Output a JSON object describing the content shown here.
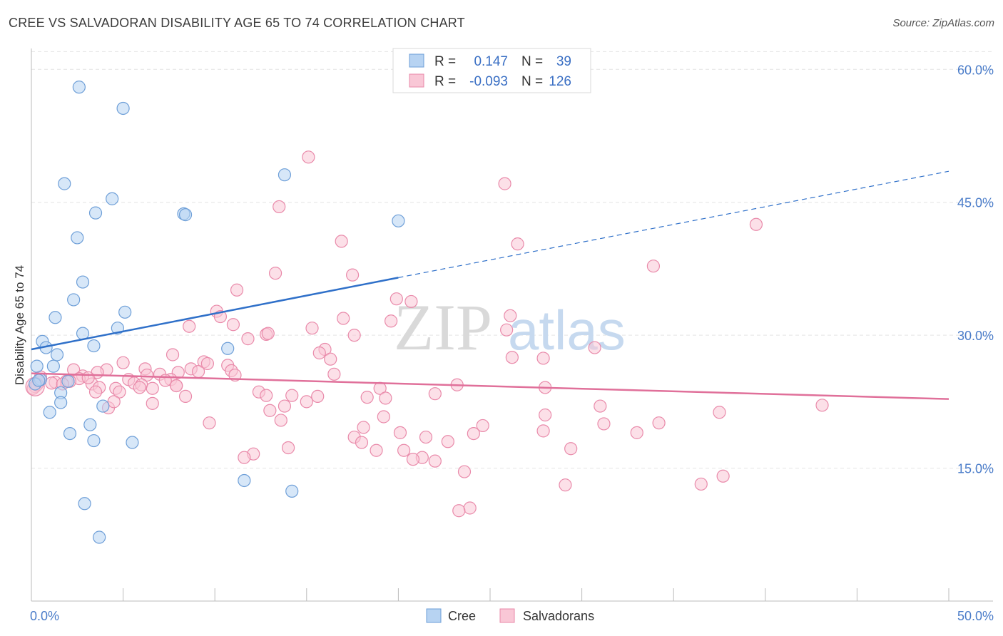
{
  "title": "CREE VS SALVADORAN DISABILITY AGE 65 TO 74 CORRELATION CHART",
  "source": "Source: ZipAtlas.com",
  "colors": {
    "cree_fill": "#b7d3f2",
    "cree_stroke": "#6e9fd8",
    "cree_line": "#2f70c9",
    "salv_fill": "#f9c7d6",
    "salv_stroke": "#e98aaa",
    "salv_line": "#e0709a",
    "grid": "#e4e4e4",
    "tick_text": "#4a7cc9"
  },
  "legend": {
    "r_label": "R =",
    "n_label": "N =",
    "rows": [
      {
        "series": "Cree",
        "r": "0.147",
        "n": "39"
      },
      {
        "series": "Salvadorans",
        "r": "-0.093",
        "n": "126"
      }
    ]
  },
  "bottom_legend": [
    "Cree",
    "Salvadorans"
  ],
  "watermark": {
    "zip": "ZIP",
    "atlas": "atlas"
  },
  "chart_data": {
    "type": "scatter",
    "title": "CREE VS SALVADORAN DISABILITY AGE 65 TO 74 CORRELATION CHART",
    "xlabel": "",
    "ylabel": "Disability Age 65 to 74",
    "xlim": [
      0,
      50
    ],
    "ylim": [
      0,
      63
    ],
    "x_ticks": [
      {
        "value": 0,
        "label": "0.0%"
      },
      {
        "value": 50,
        "label": "50.0%"
      }
    ],
    "y_ticks": [
      {
        "value": 15,
        "label": "15.0%"
      },
      {
        "value": 30,
        "label": "30.0%"
      },
      {
        "value": 45,
        "label": "45.0%"
      },
      {
        "value": 60,
        "label": "60.0%"
      }
    ],
    "grid": true,
    "series": [
      {
        "name": "Cree",
        "trend": {
          "x": [
            0,
            20
          ],
          "y": [
            28.4,
            36.5
          ],
          "dashed_extension_to": [
            50,
            48.5
          ]
        },
        "points": [
          [
            2.6,
            58.0
          ],
          [
            5.0,
            55.6
          ],
          [
            1.8,
            47.1
          ],
          [
            13.8,
            48.1
          ],
          [
            4.4,
            45.4
          ],
          [
            3.5,
            43.8
          ],
          [
            8.3,
            43.7
          ],
          [
            8.4,
            43.6
          ],
          [
            20.0,
            42.9
          ],
          [
            2.5,
            41.0
          ],
          [
            2.8,
            36.0
          ],
          [
            2.3,
            34.0
          ],
          [
            5.1,
            32.6
          ],
          [
            1.3,
            32.0
          ],
          [
            4.7,
            30.8
          ],
          [
            2.8,
            30.2
          ],
          [
            0.6,
            29.3
          ],
          [
            3.4,
            28.8
          ],
          [
            0.8,
            28.6
          ],
          [
            10.7,
            28.5
          ],
          [
            1.4,
            27.8
          ],
          [
            0.3,
            26.5
          ],
          [
            1.2,
            26.5
          ],
          [
            0.5,
            25.0
          ],
          [
            2.0,
            24.8
          ],
          [
            0.2,
            24.5
          ],
          [
            1.6,
            23.5
          ],
          [
            1.6,
            22.4
          ],
          [
            3.9,
            22.0
          ],
          [
            1.0,
            21.3
          ],
          [
            3.2,
            19.9
          ],
          [
            2.1,
            18.9
          ],
          [
            3.4,
            18.1
          ],
          [
            5.5,
            17.9
          ],
          [
            11.6,
            13.6
          ],
          [
            14.2,
            12.4
          ],
          [
            2.9,
            11.0
          ],
          [
            3.7,
            7.2
          ],
          [
            0.4,
            24.9
          ]
        ]
      },
      {
        "name": "Salvadorans",
        "trend": {
          "x": [
            0,
            50
          ],
          "y": [
            25.7,
            22.8
          ]
        },
        "points": [
          [
            15.1,
            50.1
          ],
          [
            25.8,
            47.1
          ],
          [
            13.5,
            44.5
          ],
          [
            39.5,
            42.5
          ],
          [
            16.9,
            40.6
          ],
          [
            26.5,
            40.3
          ],
          [
            33.9,
            37.8
          ],
          [
            13.3,
            37.0
          ],
          [
            17.5,
            36.8
          ],
          [
            11.2,
            35.1
          ],
          [
            19.9,
            34.1
          ],
          [
            20.7,
            33.8
          ],
          [
            10.1,
            32.7
          ],
          [
            10.3,
            32.1
          ],
          [
            26.1,
            32.2
          ],
          [
            17.0,
            31.9
          ],
          [
            19.6,
            31.6
          ],
          [
            8.6,
            31.0
          ],
          [
            11.0,
            31.2
          ],
          [
            15.3,
            30.8
          ],
          [
            25.9,
            30.6
          ],
          [
            12.8,
            30.1
          ],
          [
            12.9,
            30.2
          ],
          [
            17.6,
            30.0
          ],
          [
            11.8,
            29.6
          ],
          [
            30.7,
            28.6
          ],
          [
            7.7,
            27.8
          ],
          [
            16.0,
            28.4
          ],
          [
            15.7,
            28.0
          ],
          [
            26.2,
            27.5
          ],
          [
            27.9,
            27.4
          ],
          [
            9.4,
            27.0
          ],
          [
            9.6,
            26.8
          ],
          [
            16.3,
            27.3
          ],
          [
            5.0,
            26.9
          ],
          [
            10.7,
            26.6
          ],
          [
            4.1,
            26.1
          ],
          [
            2.3,
            26.1
          ],
          [
            6.2,
            26.2
          ],
          [
            8.7,
            26.2
          ],
          [
            3.6,
            25.8
          ],
          [
            8.0,
            25.8
          ],
          [
            9.1,
            25.9
          ],
          [
            10.9,
            26.0
          ],
          [
            7.0,
            25.6
          ],
          [
            2.8,
            25.4
          ],
          [
            6.3,
            25.5
          ],
          [
            11.1,
            25.5
          ],
          [
            16.5,
            25.6
          ],
          [
            2.6,
            25.1
          ],
          [
            5.3,
            25.0
          ],
          [
            7.6,
            25.0
          ],
          [
            7.3,
            24.9
          ],
          [
            1.9,
            24.8
          ],
          [
            2.1,
            24.8
          ],
          [
            1.3,
            24.7
          ],
          [
            1.1,
            24.6
          ],
          [
            1.7,
            24.5
          ],
          [
            0.4,
            24.7
          ],
          [
            3.3,
            24.5
          ],
          [
            5.6,
            24.6
          ],
          [
            6.0,
            24.4
          ],
          [
            7.9,
            24.3
          ],
          [
            23.2,
            24.4
          ],
          [
            0.2,
            24.2
          ],
          [
            3.7,
            24.1
          ],
          [
            4.6,
            24.0
          ],
          [
            5.9,
            24.1
          ],
          [
            6.6,
            24.0
          ],
          [
            7.9,
            24.3
          ],
          [
            19.0,
            24.0
          ],
          [
            28.0,
            24.1
          ],
          [
            3.5,
            23.6
          ],
          [
            4.8,
            23.6
          ],
          [
            12.4,
            23.6
          ],
          [
            22.0,
            23.4
          ],
          [
            12.8,
            23.2
          ],
          [
            14.2,
            23.2
          ],
          [
            15.6,
            23.1
          ],
          [
            18.3,
            23.0
          ],
          [
            19.3,
            22.9
          ],
          [
            8.4,
            23.1
          ],
          [
            6.6,
            22.3
          ],
          [
            15.0,
            22.5
          ],
          [
            13.8,
            22.0
          ],
          [
            31.0,
            22.0
          ],
          [
            43.1,
            22.1
          ],
          [
            4.2,
            21.8
          ],
          [
            13.0,
            21.5
          ],
          [
            37.5,
            21.3
          ],
          [
            19.2,
            20.8
          ],
          [
            13.6,
            20.4
          ],
          [
            31.2,
            20.0
          ],
          [
            28.0,
            21.0
          ],
          [
            9.7,
            20.1
          ],
          [
            24.6,
            19.8
          ],
          [
            34.2,
            20.1
          ],
          [
            18.1,
            19.6
          ],
          [
            20.1,
            19.0
          ],
          [
            24.1,
            18.9
          ],
          [
            27.9,
            19.2
          ],
          [
            33.0,
            19.0
          ],
          [
            21.5,
            18.5
          ],
          [
            17.6,
            18.5
          ],
          [
            22.7,
            18.0
          ],
          [
            18.0,
            17.9
          ],
          [
            29.4,
            17.2
          ],
          [
            14.0,
            17.3
          ],
          [
            18.8,
            17.0
          ],
          [
            12.1,
            16.6
          ],
          [
            20.3,
            17.0
          ],
          [
            11.6,
            16.2
          ],
          [
            21.3,
            16.2
          ],
          [
            20.8,
            16.0
          ],
          [
            22.0,
            15.8
          ],
          [
            23.6,
            14.6
          ],
          [
            37.7,
            14.1
          ],
          [
            36.5,
            13.2
          ],
          [
            29.1,
            13.1
          ],
          [
            23.9,
            10.5
          ],
          [
            23.3,
            10.2
          ],
          [
            0.1,
            24.0
          ],
          [
            0.3,
            24.4
          ],
          [
            0.5,
            25.3
          ],
          [
            3.1,
            25.2
          ],
          [
            4.5,
            22.5
          ]
        ]
      }
    ]
  }
}
